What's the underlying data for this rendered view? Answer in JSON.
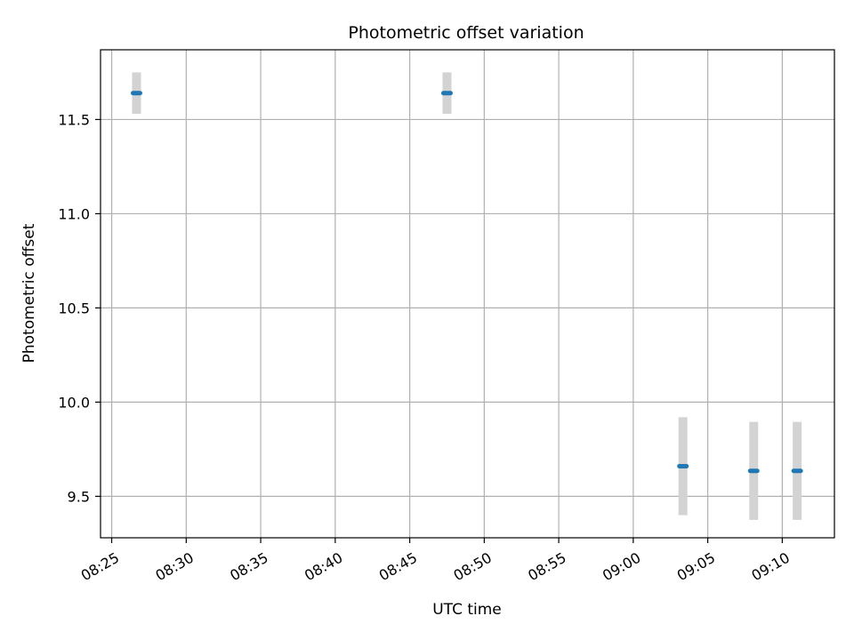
{
  "chart_data": {
    "type": "scatter",
    "title": "Photometric offset variation",
    "xlabel": "UTC time",
    "ylabel": "Photometric offset",
    "grid": true,
    "xlim": [
      "08:24:15",
      "09:13:30"
    ],
    "ylim": [
      9.28,
      11.87
    ],
    "x_ticks": [
      "08:25",
      "08:30",
      "08:35",
      "08:40",
      "08:45",
      "08:50",
      "08:55",
      "09:00",
      "09:05",
      "09:10"
    ],
    "y_ticks": [
      "9.5",
      "10.0",
      "10.5",
      "11.0",
      "11.5"
    ],
    "points": [
      {
        "x": "08:26:40",
        "y": 11.64,
        "err": 0.11
      },
      {
        "x": "08:47:30",
        "y": 11.64,
        "err": 0.11
      },
      {
        "x": "09:03:20",
        "y": 9.66,
        "err": 0.26
      },
      {
        "x": "09:08:05",
        "y": 9.635,
        "err": 0.26
      },
      {
        "x": "09:11:00",
        "y": 9.635,
        "err": 0.26
      }
    ],
    "colors": {
      "marker": "#1f77b4",
      "errorbar": "#d3d3d3",
      "grid": "#b0b0b0"
    }
  }
}
